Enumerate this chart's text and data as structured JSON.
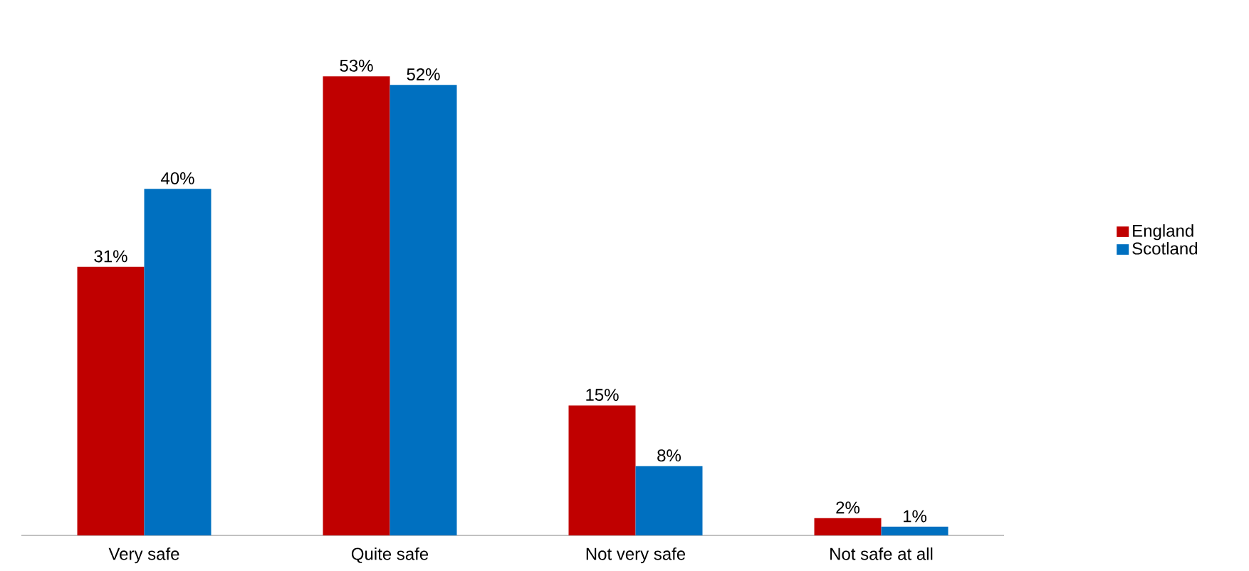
{
  "chart_data": {
    "type": "bar",
    "categories": [
      "Very safe",
      "Quite safe",
      "Not very safe",
      "Not safe at all"
    ],
    "series": [
      {
        "name": "England",
        "color": "#c00000",
        "values": [
          31,
          53,
          15,
          2
        ],
        "value_labels": [
          "31%",
          "53%",
          "15%",
          "2%"
        ]
      },
      {
        "name": "Scotland",
        "color": "#0070c0",
        "values": [
          40,
          52,
          8,
          1
        ],
        "value_labels": [
          "40%",
          "52%",
          "8%",
          "1%"
        ]
      }
    ],
    "legend": "right"
  }
}
